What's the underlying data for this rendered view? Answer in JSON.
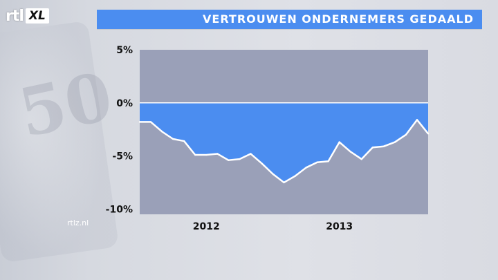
{
  "brand": {
    "logo_rtl": "rtl",
    "logo_xl": "XL",
    "watermark": "rtlz.nl"
  },
  "header": {
    "title": "VERTROUWEN ONDERNEMERS GEDAALD"
  },
  "colors": {
    "accent": "#4b8df0",
    "area_fill": "#4b8df0",
    "plot_bg": "#9aa0b8",
    "line": "#ffffff"
  },
  "chart_data": {
    "type": "area",
    "title": "VERTROUWEN ONDERNEMERS GEDAALD",
    "xlabel": "",
    "ylabel": "",
    "ylim": [
      -10.5,
      5
    ],
    "yticks": [
      5,
      0,
      -5,
      -10
    ],
    "ytick_labels": [
      "5%",
      "0%",
      "-5%",
      "-10%"
    ],
    "xtick_labels": [
      "2012",
      "2013"
    ],
    "xtick_positions": [
      6,
      18
    ],
    "grid": false,
    "legend": "none",
    "series": [
      {
        "values": [
          -1.8,
          -1.8,
          -2.7,
          -3.4,
          -3.6,
          -4.9,
          -4.9,
          -4.8,
          -5.4,
          -5.3,
          -4.8,
          -5.7,
          -6.7,
          -7.5,
          -6.9,
          -6.1,
          -5.6,
          -5.5,
          -3.7,
          -4.6,
          -5.3,
          -4.2,
          -4.1,
          -3.7,
          -3.0,
          -1.6,
          -2.9
        ]
      }
    ]
  }
}
